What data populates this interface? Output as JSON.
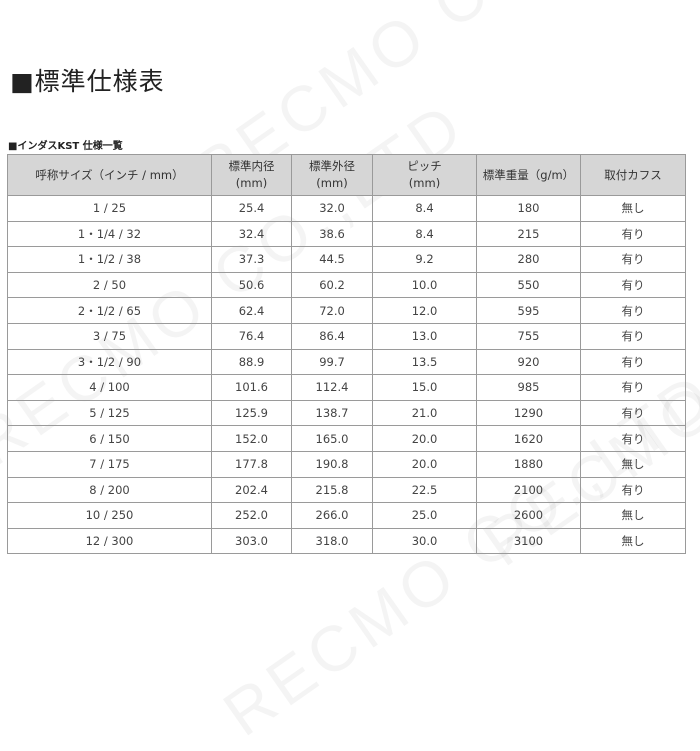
{
  "title": "■標準仕様表",
  "subtitle": "■インダスKST 仕様一覧",
  "watermark": "RECMO CO.,LTD",
  "table": {
    "headers": [
      [
        "呼称サイズ（インチ / mm）",
        ""
      ],
      [
        "標準内径",
        "(mm)"
      ],
      [
        "標準外径",
        "(mm)"
      ],
      [
        "ピッチ",
        "(mm)"
      ],
      [
        "標準重量（g/m）",
        ""
      ],
      [
        "取付カフス",
        ""
      ]
    ],
    "rows": [
      [
        "1 / 25",
        "25.4",
        "32.0",
        "8.4",
        "180",
        "無し"
      ],
      [
        "1・1/4 / 32",
        "32.4",
        "38.6",
        "8.4",
        "215",
        "有り"
      ],
      [
        "1・1/2 / 38",
        "37.3",
        "44.5",
        "9.2",
        "280",
        "有り"
      ],
      [
        "2 / 50",
        "50.6",
        "60.2",
        "10.0",
        "550",
        "有り"
      ],
      [
        "2・1/2 / 65",
        "62.4",
        "72.0",
        "12.0",
        "595",
        "有り"
      ],
      [
        "3 / 75",
        "76.4",
        "86.4",
        "13.0",
        "755",
        "有り"
      ],
      [
        "3・1/2 / 90",
        "88.9",
        "99.7",
        "13.5",
        "920",
        "有り"
      ],
      [
        "4 / 100",
        "101.6",
        "112.4",
        "15.0",
        "985",
        "有り"
      ],
      [
        "5 / 125",
        "125.9",
        "138.7",
        "21.0",
        "1290",
        "有り"
      ],
      [
        "6 / 150",
        "152.0",
        "165.0",
        "20.0",
        "1620",
        "有り"
      ],
      [
        "7 / 175",
        "177.8",
        "190.8",
        "20.0",
        "1880",
        "無し"
      ],
      [
        "8 / 200",
        "202.4",
        "215.8",
        "22.5",
        "2100",
        "有り"
      ],
      [
        "10 / 250",
        "252.0",
        "266.0",
        "25.0",
        "2600",
        "無し"
      ],
      [
        "12 / 300",
        "303.0",
        "318.0",
        "30.0",
        "3100",
        "無し"
      ]
    ]
  }
}
